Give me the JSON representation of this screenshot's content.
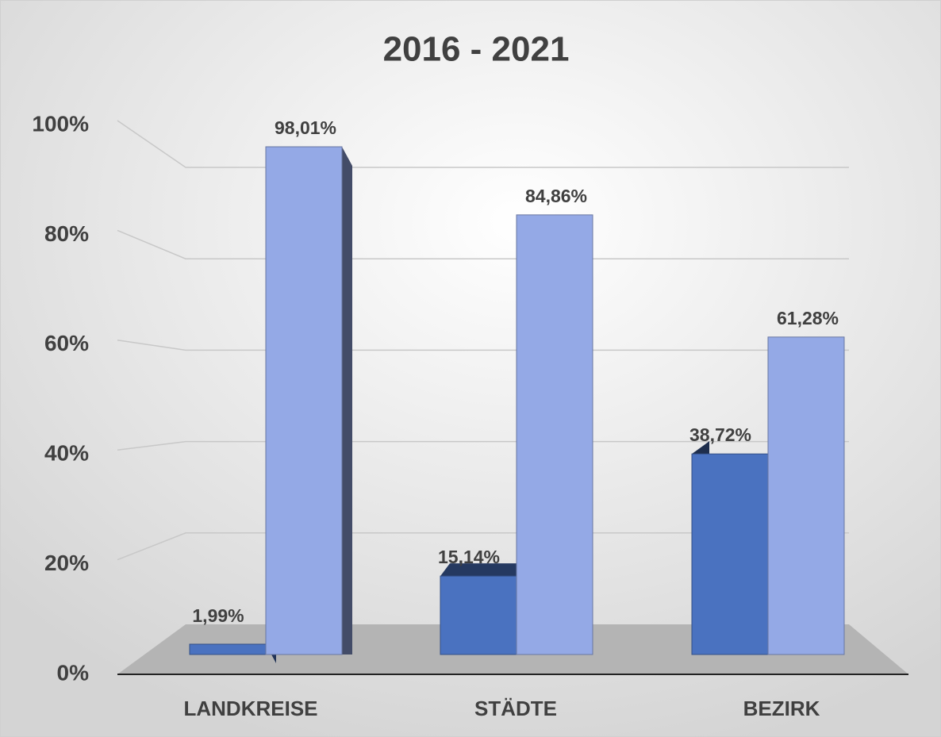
{
  "chart_data": {
    "type": "bar3d",
    "title": "2016 - 2021",
    "categories": [
      "LANDKREISE",
      "STÄDTE",
      "BEZIRK"
    ],
    "series": [
      {
        "color": "#4a72c0",
        "values": [
          1.99,
          15.14,
          38.72
        ],
        "value_labels": [
          "1,99%",
          "15,14%",
          "38,72%"
        ]
      },
      {
        "color": "#94a9e6",
        "values": [
          98.01,
          84.86,
          61.28
        ],
        "value_labels": [
          "98,01%",
          "84,86%",
          "61,28%"
        ]
      }
    ],
    "ylim": [
      0,
      100
    ],
    "yticks": [
      {
        "value": 0,
        "label": "0%"
      },
      {
        "value": 20,
        "label": "20%"
      },
      {
        "value": 40,
        "label": "40%"
      },
      {
        "value": 60,
        "label": "60%"
      },
      {
        "value": 80,
        "label": "80%"
      },
      {
        "value": 100,
        "label": "100%"
      }
    ],
    "grid": true
  }
}
